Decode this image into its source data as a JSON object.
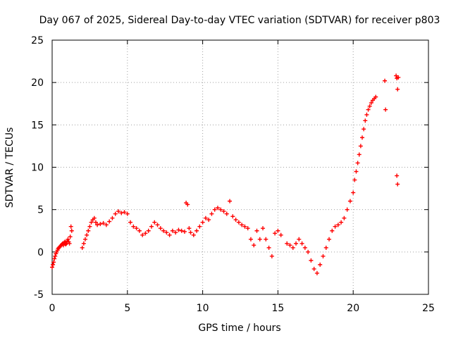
{
  "chart_data": {
    "type": "scatter",
    "title": "Day 067 of 2025, Sidereal Day-to-day VTEC variation (SDTVAR) for receiver p803",
    "xlabel": "GPS time / hours",
    "ylabel": "SDTVAR / TECUs",
    "xlim": [
      0,
      25
    ],
    "ylim": [
      -5,
      25
    ],
    "xticks": [
      0,
      5,
      10,
      15,
      20,
      25
    ],
    "yticks": [
      -5,
      0,
      5,
      10,
      15,
      20,
      25
    ],
    "grid": true,
    "marker": "+",
    "color": "#ff0000",
    "series": [
      {
        "name": "SDTVAR",
        "x": [
          0.0,
          0.05,
          0.1,
          0.15,
          0.2,
          0.25,
          0.3,
          0.35,
          0.4,
          0.45,
          0.5,
          0.55,
          0.6,
          0.65,
          0.7,
          0.75,
          0.8,
          0.85,
          0.9,
          0.95,
          1.0,
          1.05,
          1.1,
          1.15,
          1.2,
          1.25,
          1.3,
          2.0,
          2.1,
          2.2,
          2.3,
          2.4,
          2.5,
          2.6,
          2.7,
          2.8,
          2.9,
          3.0,
          3.2,
          3.4,
          3.6,
          3.8,
          4.0,
          4.2,
          4.4,
          4.6,
          4.8,
          5.0,
          5.2,
          5.4,
          5.6,
          5.8,
          6.0,
          6.2,
          6.4,
          6.6,
          6.8,
          7.0,
          7.2,
          7.4,
          7.6,
          7.8,
          8.0,
          8.2,
          8.4,
          8.6,
          8.8,
          8.9,
          9.0,
          9.1,
          9.2,
          9.4,
          9.6,
          9.8,
          10.0,
          10.2,
          10.4,
          10.6,
          10.8,
          11.0,
          11.2,
          11.4,
          11.6,
          11.8,
          12.0,
          12.2,
          12.4,
          12.6,
          12.8,
          13.0,
          13.2,
          13.4,
          13.6,
          13.8,
          14.0,
          14.2,
          14.4,
          14.6,
          14.8,
          15.0,
          15.2,
          15.6,
          15.8,
          16.0,
          16.2,
          16.4,
          16.6,
          16.8,
          17.0,
          17.2,
          17.4,
          17.6,
          17.8,
          18.0,
          18.2,
          18.4,
          18.6,
          18.8,
          19.0,
          19.2,
          19.4,
          19.6,
          19.8,
          20.0,
          20.1,
          20.2,
          20.3,
          20.4,
          20.5,
          20.6,
          20.7,
          20.8,
          20.9,
          21.0,
          21.1,
          21.2,
          21.3,
          21.4,
          21.5,
          22.1,
          22.15,
          22.85,
          22.9,
          22.95,
          23.0,
          22.9,
          22.95
        ],
        "y": [
          -1.8,
          -1.5,
          -1.2,
          -0.8,
          -0.5,
          -0.2,
          0.0,
          0.2,
          0.4,
          0.5,
          0.6,
          0.7,
          0.8,
          0.9,
          1.0,
          0.8,
          1.1,
          1.2,
          0.9,
          1.0,
          1.3,
          1.5,
          1.2,
          1.0,
          1.8,
          3.0,
          2.5,
          0.5,
          1.0,
          1.5,
          2.0,
          2.5,
          3.0,
          3.5,
          3.8,
          4.0,
          3.5,
          3.2,
          3.3,
          3.4,
          3.2,
          3.6,
          4.0,
          4.5,
          4.8,
          4.6,
          4.7,
          4.5,
          3.5,
          3.0,
          2.8,
          2.5,
          2.0,
          2.2,
          2.5,
          3.0,
          3.5,
          3.2,
          2.8,
          2.5,
          2.3,
          2.0,
          2.5,
          2.3,
          2.6,
          2.5,
          2.4,
          5.8,
          5.6,
          2.8,
          2.3,
          2.0,
          2.5,
          3.0,
          3.5,
          4.0,
          3.8,
          4.5,
          5.0,
          5.2,
          5.0,
          4.8,
          4.5,
          6.0,
          4.2,
          3.8,
          3.5,
          3.2,
          3.0,
          2.8,
          1.5,
          0.8,
          2.5,
          1.5,
          2.8,
          1.5,
          0.5,
          -0.5,
          2.2,
          2.5,
          2.0,
          1.0,
          0.8,
          0.5,
          1.0,
          1.5,
          1.0,
          0.5,
          0.0,
          -1.0,
          -2.0,
          -2.5,
          -1.5,
          -0.5,
          0.5,
          1.5,
          2.5,
          3.0,
          3.2,
          3.5,
          4.0,
          5.0,
          6.0,
          7.0,
          8.5,
          9.5,
          10.5,
          11.5,
          12.5,
          13.5,
          14.5,
          15.5,
          16.2,
          16.8,
          17.2,
          17.6,
          17.9,
          18.1,
          18.3,
          20.2,
          16.8,
          20.8,
          20.5,
          19.2,
          20.6,
          9.0,
          8.0
        ]
      }
    ]
  }
}
